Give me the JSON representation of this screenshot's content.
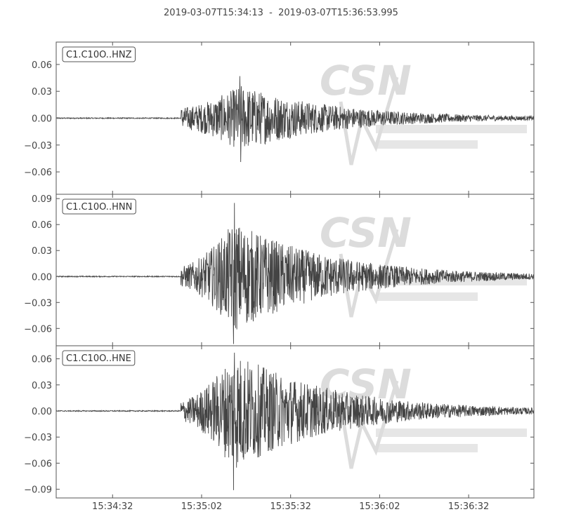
{
  "title": "2019-03-07T15:34:13  -  2019-03-07T15:36:53.995",
  "colors": {
    "trace": "#444444",
    "axis": "#555555",
    "label_border": "#555555",
    "watermark": "#dcdcdc"
  },
  "watermark": {
    "logo_text": "CSN"
  },
  "chart_data": [
    {
      "type": "line",
      "label": "C1.C10O..HNZ",
      "xlim": [
        "15:34:13",
        "15:36:53.995"
      ],
      "ylim": [
        -0.085,
        0.085
      ],
      "yticks": [
        0.06,
        0.03,
        0.0,
        -0.03,
        -0.06
      ],
      "ytick_labels": [
        "0.06",
        "0.03",
        "0.00",
        "−0.03",
        "−0.06"
      ],
      "onset": "15:34:55",
      "peak_time": "15:35:15",
      "peak_max": 0.047,
      "peak_min": -0.049,
      "coda_end": "15:36:53"
    },
    {
      "type": "line",
      "label": "C1.C10O..HNN",
      "xlim": [
        "15:34:13",
        "15:36:53.995"
      ],
      "ylim": [
        -0.08,
        0.095
      ],
      "yticks": [
        0.09,
        0.06,
        0.03,
        0.0,
        -0.03,
        -0.06
      ],
      "ytick_labels": [
        "0.09",
        "0.06",
        "0.03",
        "0.00",
        "−0.03",
        "−0.06"
      ],
      "onset": "15:34:55",
      "peak_time": "15:35:13",
      "peak_max": 0.085,
      "peak_min": -0.078,
      "coda_end": "15:36:53"
    },
    {
      "type": "line",
      "label": "C1.C10O..HNE",
      "xlim": [
        "15:34:13",
        "15:36:53.995"
      ],
      "ylim": [
        -0.1,
        0.075
      ],
      "yticks": [
        0.06,
        0.03,
        0.0,
        -0.03,
        -0.06,
        -0.09
      ],
      "ytick_labels": [
        "0.06",
        "0.03",
        "0.00",
        "−0.03",
        "−0.06",
        "−0.09"
      ],
      "onset": "15:34:55",
      "peak_time": "15:35:13",
      "peak_max": 0.067,
      "peak_min": -0.091,
      "coda_end": "15:36:53"
    }
  ],
  "xticks": [
    "15:34:32",
    "15:35:02",
    "15:35:32",
    "15:36:02",
    "15:36:32"
  ]
}
